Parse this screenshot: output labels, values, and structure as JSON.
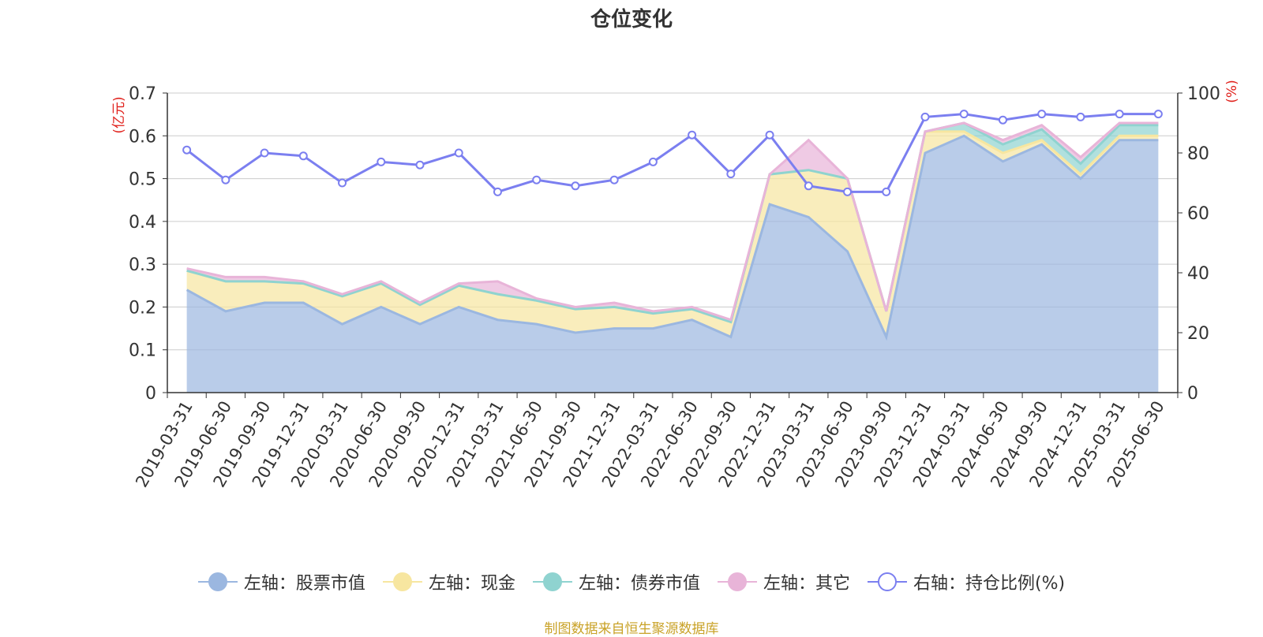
{
  "chart_data": {
    "type": "area",
    "title": "仓位变化",
    "x": [
      "2019-03-31",
      "2019-06-30",
      "2019-09-30",
      "2019-12-31",
      "2020-03-31",
      "2020-06-30",
      "2020-09-30",
      "2020-12-31",
      "2021-03-31",
      "2021-06-30",
      "2021-09-30",
      "2021-12-31",
      "2022-03-31",
      "2022-06-30",
      "2022-09-30",
      "2022-12-31",
      "2023-03-31",
      "2023-06-30",
      "2023-09-30",
      "2023-12-31",
      "2024-03-31",
      "2024-06-30",
      "2024-09-30",
      "2024-12-31",
      "2025-03-31",
      "2025-06-30"
    ],
    "left_axis": {
      "label": "(亿元)",
      "ylim": [
        0,
        0.7
      ],
      "ticks": [
        "0",
        "0.1",
        "0.2",
        "0.3",
        "0.4",
        "0.5",
        "0.6",
        "0.7"
      ]
    },
    "right_axis": {
      "label": "(%)",
      "ylim": [
        0,
        100
      ],
      "ticks": [
        "0",
        "20",
        "40",
        "60",
        "80",
        "100"
      ]
    },
    "stacking": "stacked",
    "series": [
      {
        "name": "左轴：股票市值",
        "axis": "left",
        "color": "#9bb7e0",
        "values": [
          0.24,
          0.19,
          0.21,
          0.21,
          0.16,
          0.2,
          0.16,
          0.2,
          0.17,
          0.16,
          0.14,
          0.15,
          0.15,
          0.17,
          0.13,
          0.44,
          0.41,
          0.33,
          0.13,
          0.56,
          0.6,
          0.54,
          0.58,
          0.5,
          0.59,
          0.59
        ]
      },
      {
        "name": "左轴：现金",
        "axis": "left",
        "color": "#f7e6a0",
        "values": [
          0.045,
          0.07,
          0.05,
          0.045,
          0.065,
          0.055,
          0.045,
          0.05,
          0.06,
          0.055,
          0.055,
          0.05,
          0.035,
          0.025,
          0.035,
          0.07,
          0.11,
          0.17,
          0.06,
          0.05,
          0.01,
          0.02,
          0.01,
          0.01,
          0.01,
          0.01
        ]
      },
      {
        "name": "左轴：债券市值",
        "axis": "left",
        "color": "#8fd3d0",
        "values": [
          0,
          0,
          0,
          0,
          0,
          0,
          0,
          0,
          0,
          0,
          0,
          0,
          0,
          0,
          0,
          0,
          0,
          0,
          0,
          0,
          0.02,
          0.02,
          0.025,
          0.025,
          0.025,
          0.025
        ]
      },
      {
        "name": "左轴：其它",
        "axis": "left",
        "color": "#e8b4d8",
        "values": [
          0.005,
          0.01,
          0.01,
          0.005,
          0.005,
          0.005,
          0.005,
          0.005,
          0.03,
          0.005,
          0.005,
          0.01,
          0.005,
          0.005,
          0.005,
          0.0,
          0.07,
          0.0,
          0.0,
          0.0,
          0.0,
          0.01,
          0.01,
          0.015,
          0.005,
          0.005
        ]
      },
      {
        "name": "右轴：持仓比例(%)",
        "axis": "right",
        "color": "#7b7ff0",
        "values": [
          81,
          71,
          80,
          79,
          70,
          77,
          76,
          80,
          67,
          71,
          69,
          71,
          77,
          86,
          73,
          86,
          69,
          67,
          67,
          92,
          93,
          91,
          93,
          92,
          93,
          93
        ]
      }
    ]
  },
  "footer": {
    "source": "制图数据来自恒生聚源数据库"
  }
}
